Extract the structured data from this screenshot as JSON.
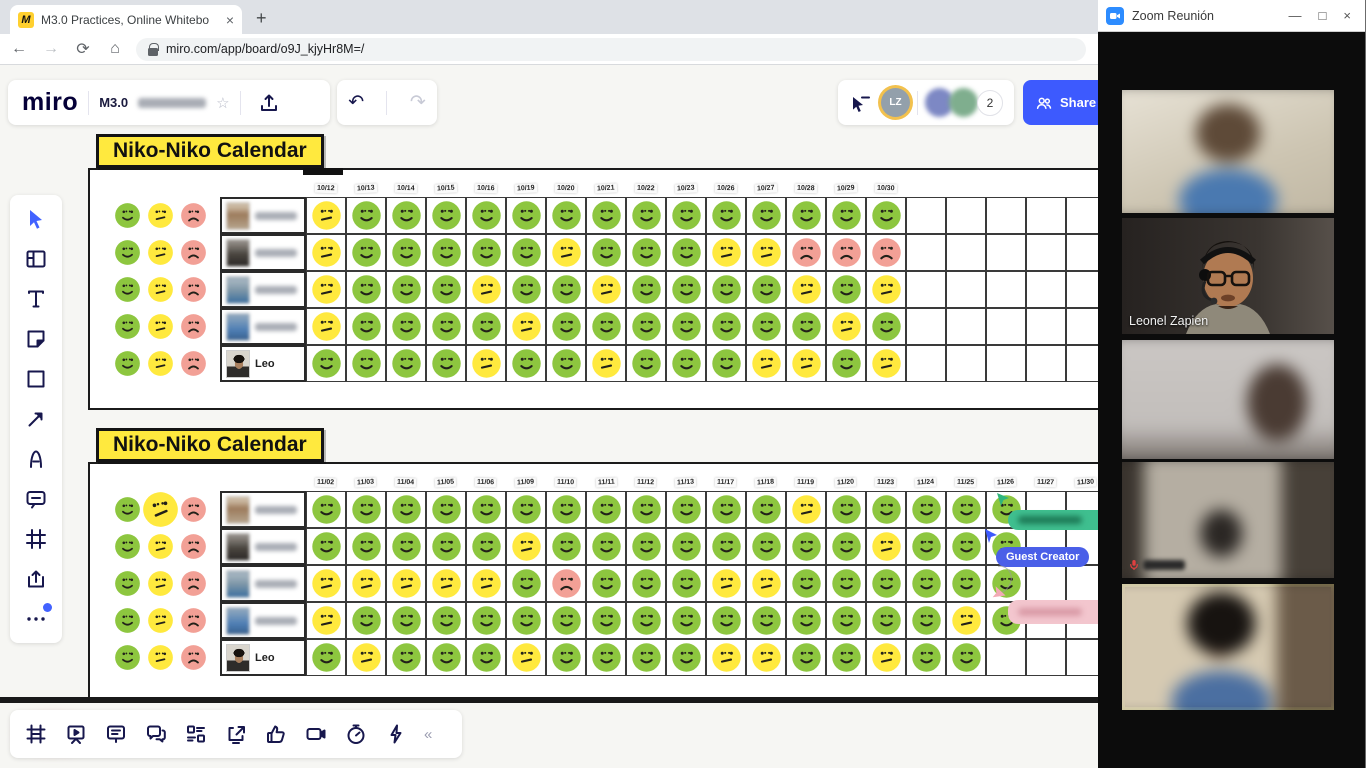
{
  "browser": {
    "tab_title": "M3.0 Practices, Online Whiteboa",
    "tab_close": "×",
    "new_tab": "+",
    "back": "←",
    "forward": "→",
    "reload": "⟳",
    "home": "⌂",
    "url": "miro.com/app/board/o9J_kjyHr8M=/"
  },
  "miro_header": {
    "logo": "miro",
    "board_title": "M3.0",
    "undo": "↶",
    "redo": "↷",
    "current_user_initials": "LZ",
    "more_collaborators_count": "2",
    "share_label": "Share"
  },
  "left_toolbar": {
    "items": [
      {
        "name": "select-tool",
        "active": true
      },
      {
        "name": "templates-tool"
      },
      {
        "name": "text-tool"
      },
      {
        "name": "sticky-note-tool"
      },
      {
        "name": "shapes-tool"
      },
      {
        "name": "connection-line-tool"
      },
      {
        "name": "pen-tool"
      },
      {
        "name": "comment-tool"
      },
      {
        "name": "frames-tool"
      },
      {
        "name": "upload-tool"
      },
      {
        "name": "more-tools",
        "notification": true
      }
    ]
  },
  "bottom_toolbar": {
    "items": [
      {
        "name": "frames-panel"
      },
      {
        "name": "presentation-mode"
      },
      {
        "name": "comments-panel"
      },
      {
        "name": "chat-panel"
      },
      {
        "name": "cards-panel"
      },
      {
        "name": "screen-share"
      },
      {
        "name": "reactions"
      },
      {
        "name": "video-chat"
      },
      {
        "name": "timer"
      },
      {
        "name": "activities"
      }
    ],
    "collapse": "«"
  },
  "board": {
    "mood_colors": {
      "g": "#8dc63f",
      "y": "#ffe93e",
      "r": "#f2a096"
    },
    "legend": [
      "g",
      "y",
      "r"
    ],
    "collab_cursors": {
      "guest_label": "Guest Creator"
    },
    "calendars": [
      {
        "title": "Niko-Niko Calendar",
        "dates": [
          "10/12",
          "10/13",
          "10/14",
          "10/15",
          "10/16",
          "10/19",
          "10/20",
          "10/21",
          "10/22",
          "10/23",
          "10/26",
          "10/27",
          "10/28",
          "10/29",
          "10/30"
        ],
        "trailing_empty_cols": 6,
        "big_yellow_legend_row": null,
        "rows": [
          {
            "name": "",
            "blurred": true,
            "photo": "p-tan",
            "moods": [
              "y",
              "g",
              "g",
              "g",
              "g",
              "g",
              "g",
              "g",
              "g",
              "g",
              "g",
              "g",
              "g",
              "g",
              "g"
            ]
          },
          {
            "name": "",
            "blurred": true,
            "photo": "p-dark",
            "moods": [
              "y",
              "g",
              "g",
              "g",
              "g",
              "g",
              "y",
              "g",
              "g",
              "g",
              "y",
              "y",
              "r",
              "r",
              "r"
            ]
          },
          {
            "name": "",
            "blurred": true,
            "photo": "p-bgrey",
            "moods": [
              "y",
              "g",
              "g",
              "g",
              "y",
              "g",
              "g",
              "y",
              "g",
              "g",
              "g",
              "g",
              "y",
              "g",
              "y"
            ]
          },
          {
            "name": "",
            "blurred": true,
            "photo": "p-blue",
            "moods": [
              "y",
              "g",
              "g",
              "g",
              "g",
              "y",
              "g",
              "g",
              "g",
              "g",
              "g",
              "g",
              "g",
              "y",
              "g"
            ]
          },
          {
            "name": "Leo",
            "blurred": false,
            "photo": "p-leo",
            "moods": [
              "g",
              "g",
              "g",
              "g",
              "y",
              "g",
              "g",
              "y",
              "g",
              "g",
              "g",
              "y",
              "y",
              "g",
              "y"
            ]
          }
        ]
      },
      {
        "title": "Niko-Niko Calendar",
        "dates": [
          "11/02",
          "11/03",
          "11/04",
          "11/05",
          "11/06",
          "11/09",
          "11/10",
          "11/11",
          "11/12",
          "11/13",
          "11/17",
          "11/18",
          "11/19",
          "11/20",
          "11/23",
          "11/24",
          "11/25",
          "11/26",
          "11/27",
          "11/30"
        ],
        "trailing_empty_cols": 0,
        "big_yellow_legend_row": 0,
        "rows": [
          {
            "name": "",
            "blurred": true,
            "photo": "p-tan",
            "moods": [
              "g",
              "g",
              "g",
              "g",
              "g",
              "g",
              "g",
              "g",
              "g",
              "g",
              "g",
              "g",
              "y",
              "g",
              "g",
              "g",
              "g",
              "g",
              null,
              null
            ]
          },
          {
            "name": "",
            "blurred": true,
            "photo": "p-dark",
            "moods": [
              "g",
              "g",
              "g",
              "g",
              "g",
              "y",
              "g",
              "g",
              "g",
              "g",
              "g",
              "g",
              "g",
              "g",
              "y",
              "g",
              "g",
              "g",
              null,
              null
            ]
          },
          {
            "name": "",
            "blurred": true,
            "photo": "p-bgrey",
            "moods": [
              "y",
              "y",
              "y",
              "y",
              "y",
              "g",
              "r",
              "g",
              "g",
              "g",
              "y",
              "y",
              "g",
              "g",
              "g",
              "g",
              "g",
              "g",
              null,
              null
            ]
          },
          {
            "name": "",
            "blurred": true,
            "photo": "p-blue",
            "moods": [
              "y",
              "g",
              "g",
              "g",
              "g",
              "g",
              "g",
              "g",
              "g",
              "g",
              "g",
              "g",
              "g",
              "g",
              "g",
              "g",
              "y",
              "g",
              null,
              null
            ]
          },
          {
            "name": "Leo",
            "blurred": false,
            "photo": "p-leo",
            "moods": [
              "g",
              "y",
              "g",
              "g",
              "g",
              "y",
              "g",
              "g",
              "g",
              "g",
              "y",
              "y",
              "g",
              "g",
              "y",
              "g",
              "g",
              null,
              null,
              null
            ]
          }
        ]
      }
    ]
  },
  "zoom": {
    "window_title": "Zoom Reunión",
    "minimize": "—",
    "maximize": "□",
    "close": "×",
    "participants": [
      {
        "label": "",
        "style": "blur-bright-man",
        "blurred": true
      },
      {
        "label": "Leonel Zapien",
        "style": "leonel",
        "blurred": false
      },
      {
        "label": "",
        "style": "blur-woman",
        "blurred": true
      },
      {
        "label": "",
        "style": "blur-room",
        "blurred": true,
        "mic_muted": true
      },
      {
        "label": "",
        "style": "blur-headphones",
        "blurred": true,
        "active_speaker": true
      }
    ]
  }
}
